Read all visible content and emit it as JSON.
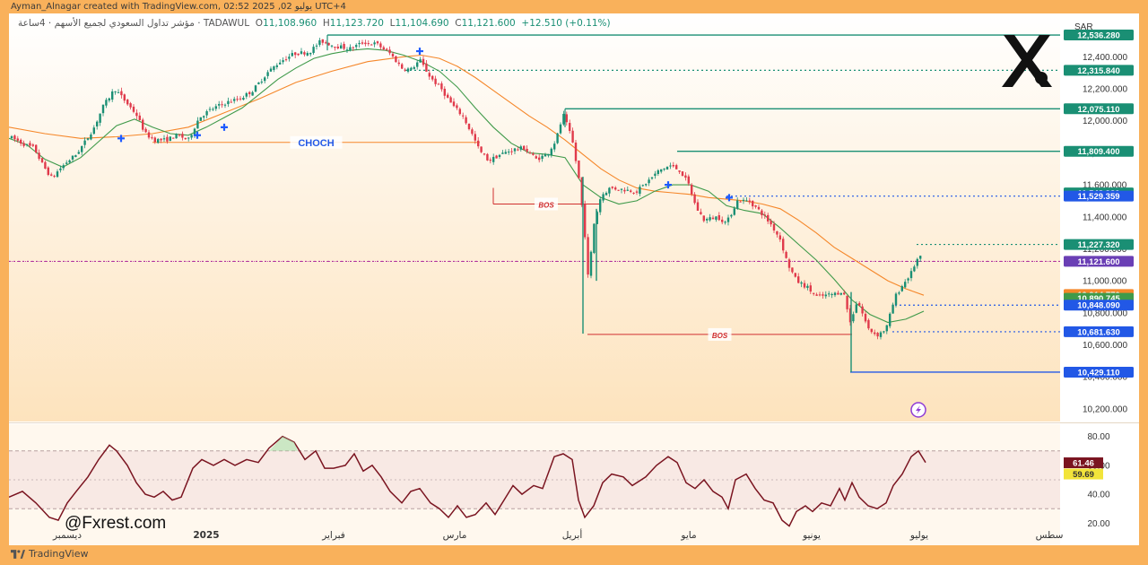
{
  "creator_line": "Ayman_Alnagar created with TradingView.com, 02:52 2025 ,02 يوليو UTC+4",
  "symbol": {
    "name": "مؤشر تداول السعودي لجميع الأسهم · 4ساعة · TADAWUL",
    "open_label": "O",
    "open": "11,108.960",
    "high_label": "H",
    "high": "11,123.720",
    "low_label": "L",
    "low": "11,104.690",
    "close_label": "C",
    "close": "11,121.600",
    "change": "+12.510 (+0.11%)"
  },
  "currency": "SAR",
  "watermark_text": "@Fxrest.com",
  "footer_brand": "TradingView",
  "colors": {
    "background_outer": "#f9b15b",
    "up": "#1a8f74",
    "down": "#e03a4b",
    "sma_fast": "#3f9a4a",
    "sma_slow": "#f5872a",
    "rsi": "#7a1420",
    "level_green": "#1a8f74",
    "level_blue": "#2258e6",
    "bos": "#d03030",
    "choch": "#2258e6"
  },
  "chart_data": {
    "type": "candlestick",
    "timeframe": "4h",
    "y_axis": {
      "ticks": [
        "12,400.000",
        "12,200.000",
        "12,000.000",
        "11,800.000",
        "11,600.000",
        "11,400.000",
        "11,200.000",
        "11,000.000",
        "10,800.000",
        "10,600.000",
        "10,400.000",
        "10,200.000"
      ],
      "range": [
        10160,
        12570
      ]
    },
    "x_axis": {
      "ticks": [
        "ديسمبر",
        "2025",
        "فبراير",
        "مارس",
        "أبريل",
        "مايو",
        "يونيو",
        "يوليو",
        "سطس"
      ]
    },
    "price_path": [
      [
        0,
        11900
      ],
      [
        8,
        11880
      ],
      [
        18,
        11850
      ],
      [
        28,
        11830
      ],
      [
        38,
        11720
      ],
      [
        48,
        11640
      ],
      [
        55,
        11690
      ],
      [
        64,
        11740
      ],
      [
        75,
        11790
      ],
      [
        85,
        11870
      ],
      [
        95,
        11960
      ],
      [
        105,
        12090
      ],
      [
        118,
        12200
      ],
      [
        130,
        12120
      ],
      [
        142,
        12040
      ],
      [
        152,
        11920
      ],
      [
        162,
        11880
      ],
      [
        175,
        11880
      ],
      [
        188,
        11910
      ],
      [
        200,
        11880
      ],
      [
        212,
        12020
      ],
      [
        225,
        12070
      ],
      [
        240,
        12110
      ],
      [
        258,
        12140
      ],
      [
        272,
        12190
      ],
      [
        288,
        12300
      ],
      [
        302,
        12370
      ],
      [
        318,
        12420
      ],
      [
        335,
        12430
      ],
      [
        348,
        12500
      ],
      [
        362,
        12470
      ],
      [
        380,
        12450
      ],
      [
        395,
        12490
      ],
      [
        410,
        12480
      ],
      [
        425,
        12420
      ],
      [
        438,
        12330
      ],
      [
        448,
        12320
      ],
      [
        458,
        12380
      ],
      [
        470,
        12270
      ],
      [
        482,
        12200
      ],
      [
        494,
        12100
      ],
      [
        506,
        12030
      ],
      [
        516,
        11920
      ],
      [
        525,
        11810
      ],
      [
        535,
        11750
      ],
      [
        548,
        11790
      ],
      [
        562,
        11820
      ],
      [
        574,
        11830
      ],
      [
        588,
        11760
      ],
      [
        600,
        11790
      ],
      [
        610,
        11880
      ],
      [
        618,
        12040
      ],
      [
        628,
        11880
      ],
      [
        636,
        11620
      ],
      [
        642,
        11300
      ],
      [
        646,
        11000
      ],
      [
        652,
        11350
      ],
      [
        660,
        11530
      ],
      [
        670,
        11580
      ],
      [
        685,
        11570
      ],
      [
        700,
        11560
      ],
      [
        712,
        11620
      ],
      [
        725,
        11690
      ],
      [
        737,
        11720
      ],
      [
        748,
        11690
      ],
      [
        758,
        11600
      ],
      [
        766,
        11460
      ],
      [
        775,
        11380
      ],
      [
        790,
        11400
      ],
      [
        800,
        11360
      ],
      [
        812,
        11500
      ],
      [
        825,
        11500
      ],
      [
        838,
        11430
      ],
      [
        850,
        11350
      ],
      [
        860,
        11260
      ],
      [
        868,
        11110
      ],
      [
        878,
        11000
      ],
      [
        890,
        10960
      ],
      [
        900,
        10900
      ],
      [
        912,
        10910
      ],
      [
        922,
        10920
      ],
      [
        930,
        10940
      ],
      [
        938,
        10740
      ],
      [
        946,
        10880
      ],
      [
        958,
        10700
      ],
      [
        968,
        10660
      ],
      [
        978,
        10700
      ],
      [
        988,
        10900
      ],
      [
        996,
        10970
      ],
      [
        1006,
        11050
      ],
      [
        1012,
        11130
      ],
      [
        1018,
        11150
      ]
    ],
    "sma_fast_path": [
      [
        0,
        11890
      ],
      [
        20,
        11850
      ],
      [
        40,
        11760
      ],
      [
        60,
        11710
      ],
      [
        80,
        11770
      ],
      [
        100,
        11870
      ],
      [
        120,
        11970
      ],
      [
        140,
        12010
      ],
      [
        160,
        11960
      ],
      [
        180,
        11920
      ],
      [
        200,
        11910
      ],
      [
        220,
        11960
      ],
      [
        240,
        12020
      ],
      [
        260,
        12080
      ],
      [
        280,
        12170
      ],
      [
        300,
        12260
      ],
      [
        320,
        12330
      ],
      [
        340,
        12390
      ],
      [
        360,
        12420
      ],
      [
        380,
        12440
      ],
      [
        400,
        12450
      ],
      [
        420,
        12440
      ],
      [
        440,
        12410
      ],
      [
        460,
        12370
      ],
      [
        480,
        12310
      ],
      [
        500,
        12210
      ],
      [
        520,
        12080
      ],
      [
        540,
        11960
      ],
      [
        560,
        11860
      ],
      [
        580,
        11800
      ],
      [
        600,
        11790
      ],
      [
        620,
        11770
      ],
      [
        640,
        11600
      ],
      [
        660,
        11520
      ],
      [
        680,
        11480
      ],
      [
        700,
        11500
      ],
      [
        720,
        11560
      ],
      [
        740,
        11600
      ],
      [
        760,
        11600
      ],
      [
        780,
        11560
      ],
      [
        800,
        11470
      ],
      [
        820,
        11440
      ],
      [
        840,
        11420
      ],
      [
        860,
        11330
      ],
      [
        880,
        11230
      ],
      [
        900,
        11130
      ],
      [
        920,
        11010
      ],
      [
        940,
        10880
      ],
      [
        960,
        10790
      ],
      [
        980,
        10740
      ],
      [
        1000,
        10760
      ],
      [
        1020,
        10810
      ]
    ],
    "sma_slow_path": [
      [
        0,
        11960
      ],
      [
        40,
        11920
      ],
      [
        80,
        11890
      ],
      [
        120,
        11900
      ],
      [
        160,
        11920
      ],
      [
        200,
        11960
      ],
      [
        240,
        12050
      ],
      [
        280,
        12140
      ],
      [
        320,
        12240
      ],
      [
        360,
        12310
      ],
      [
        400,
        12370
      ],
      [
        440,
        12400
      ],
      [
        460,
        12410
      ],
      [
        480,
        12390
      ],
      [
        500,
        12340
      ],
      [
        520,
        12270
      ],
      [
        540,
        12190
      ],
      [
        560,
        12110
      ],
      [
        580,
        12030
      ],
      [
        600,
        11960
      ],
      [
        620,
        11880
      ],
      [
        640,
        11790
      ],
      [
        660,
        11700
      ],
      [
        680,
        11630
      ],
      [
        700,
        11580
      ],
      [
        720,
        11560
      ],
      [
        740,
        11550
      ],
      [
        760,
        11540
      ],
      [
        780,
        11520
      ],
      [
        800,
        11510
      ],
      [
        820,
        11500
      ],
      [
        840,
        11480
      ],
      [
        860,
        11450
      ],
      [
        880,
        11380
      ],
      [
        900,
        11300
      ],
      [
        920,
        11210
      ],
      [
        940,
        11140
      ],
      [
        960,
        11070
      ],
      [
        980,
        11000
      ],
      [
        1000,
        10950
      ],
      [
        1020,
        10910
      ]
    ],
    "levels": [
      {
        "label": "12,536.280",
        "value": 12536.28,
        "style": "solid",
        "color": "#1a8f74",
        "from_x": 355
      },
      {
        "label": "12,315.840",
        "value": 12315.84,
        "style": "dotted",
        "color": "#1a8f74",
        "from_x": 442
      },
      {
        "label": "12,075.110",
        "value": 12075.11,
        "style": "solid",
        "color": "#1a8f74",
        "from_x": 620
      },
      {
        "label": "11,809.400",
        "value": 11809.4,
        "style": "solid",
        "color": "#1a8f74",
        "from_x": 745
      },
      {
        "label": "11,548.920",
        "value": 11548.92,
        "style": "none",
        "color": "#1a8f74",
        "from_x": 0
      },
      {
        "label": "11,529.359",
        "value": 11529.359,
        "style": "dotted",
        "color": "#2258e6",
        "from_x": 800
      },
      {
        "label": "11,227.320",
        "value": 11227.32,
        "style": "dotted",
        "color": "#1a8f74",
        "from_x": 1012
      },
      {
        "label": "11,121.600",
        "value": 11121.6,
        "style": "dotted",
        "color": "#b0329e",
        "from_x": 0
      },
      {
        "label": "10,914.770",
        "value": 10914.77,
        "style": "none",
        "color": "#f5872a",
        "from_x": 0
      },
      {
        "label": "10,890.745",
        "value": 10890.745,
        "style": "none",
        "color": "#3f9a4a",
        "from_x": 0
      },
      {
        "label": "10,848.090",
        "value": 10848.09,
        "style": "dotted",
        "color": "#2258e6",
        "from_x": 988
      },
      {
        "label": "10,681.630",
        "value": 10681.63,
        "style": "dotted",
        "color": "#2258e6",
        "from_x": 985
      },
      {
        "label": "10,429.110",
        "value": 10429.11,
        "style": "solid",
        "color": "#2258e6",
        "from_x": 938
      }
    ],
    "level_label_colors": {
      "12,536.280": "#1a8f74",
      "12,315.840": "#1a8f74",
      "12,075.110": "#1a8f74",
      "11,809.400": "#1a8f74",
      "11,548.920": "#1a8f74",
      "11,529.359": "#2258e6",
      "11,227.320": "#1a8f74",
      "11,121.600": "#6a3fb5",
      "10,914.770": "#f5872a",
      "10,890.745": "#3f9a4a",
      "10,848.090": "#2258e6",
      "10,681.630": "#2258e6",
      "10,429.110": "#2258e6"
    },
    "annotations": [
      {
        "text": "CHOCH",
        "value": 11865,
        "x1": 160,
        "x2": 525,
        "color": "#f5872a",
        "text_color": "#2258e6"
      },
      {
        "text": "BOS",
        "value": 11480,
        "x1": 540,
        "x2": 658,
        "color": "#d03030",
        "text_color": "#d03030"
      },
      {
        "text": "BOS",
        "value": 10665,
        "x1": 645,
        "x2": 940,
        "color": "#d03030",
        "text_color": "#d03030"
      }
    ],
    "markers": [
      [
        125,
        11890
      ],
      [
        210,
        11910
      ],
      [
        240,
        11960
      ],
      [
        458,
        12435
      ],
      [
        735,
        11600
      ],
      [
        803,
        11520
      ]
    ],
    "rsi": {
      "ticks": [
        "80.00",
        "60.00",
        "40.00",
        "20.00"
      ],
      "range": [
        14,
        86
      ],
      "bands": [
        70,
        30
      ],
      "current": "61.46",
      "signal": "59.69",
      "path": [
        [
          0,
          38
        ],
        [
          15,
          42
        ],
        [
          30,
          34
        ],
        [
          45,
          24
        ],
        [
          55,
          22
        ],
        [
          65,
          34
        ],
        [
          75,
          42
        ],
        [
          88,
          52
        ],
        [
          100,
          64
        ],
        [
          112,
          74
        ],
        [
          120,
          70
        ],
        [
          132,
          60
        ],
        [
          142,
          48
        ],
        [
          152,
          40
        ],
        [
          162,
          38
        ],
        [
          172,
          42
        ],
        [
          182,
          36
        ],
        [
          192,
          38
        ],
        [
          205,
          58
        ],
        [
          215,
          64
        ],
        [
          228,
          60
        ],
        [
          240,
          64
        ],
        [
          252,
          60
        ],
        [
          265,
          64
        ],
        [
          278,
          62
        ],
        [
          290,
          72
        ],
        [
          305,
          80
        ],
        [
          318,
          76
        ],
        [
          330,
          64
        ],
        [
          342,
          70
        ],
        [
          352,
          58
        ],
        [
          362,
          58
        ],
        [
          375,
          60
        ],
        [
          385,
          68
        ],
        [
          395,
          56
        ],
        [
          405,
          60
        ],
        [
          415,
          52
        ],
        [
          425,
          42
        ],
        [
          438,
          34
        ],
        [
          448,
          42
        ],
        [
          458,
          44
        ],
        [
          470,
          34
        ],
        [
          480,
          30
        ],
        [
          490,
          24
        ],
        [
          500,
          32
        ],
        [
          510,
          24
        ],
        [
          520,
          26
        ],
        [
          532,
          34
        ],
        [
          542,
          26
        ],
        [
          552,
          36
        ],
        [
          562,
          46
        ],
        [
          572,
          40
        ],
        [
          585,
          46
        ],
        [
          595,
          44
        ],
        [
          608,
          66
        ],
        [
          618,
          68
        ],
        [
          628,
          64
        ],
        [
          635,
          36
        ],
        [
          642,
          24
        ],
        [
          652,
          32
        ],
        [
          662,
          48
        ],
        [
          672,
          54
        ],
        [
          685,
          52
        ],
        [
          695,
          46
        ],
        [
          710,
          52
        ],
        [
          722,
          60
        ],
        [
          735,
          66
        ],
        [
          745,
          62
        ],
        [
          755,
          48
        ],
        [
          765,
          44
        ],
        [
          775,
          50
        ],
        [
          785,
          42
        ],
        [
          795,
          38
        ],
        [
          802,
          30
        ],
        [
          810,
          50
        ],
        [
          822,
          54
        ],
        [
          832,
          44
        ],
        [
          842,
          36
        ],
        [
          852,
          34
        ],
        [
          862,
          22
        ],
        [
          870,
          18
        ],
        [
          878,
          28
        ],
        [
          888,
          32
        ],
        [
          896,
          28
        ],
        [
          906,
          34
        ],
        [
          916,
          32
        ],
        [
          926,
          44
        ],
        [
          932,
          36
        ],
        [
          940,
          48
        ],
        [
          948,
          38
        ],
        [
          958,
          32
        ],
        [
          968,
          30
        ],
        [
          978,
          34
        ],
        [
          986,
          46
        ],
        [
          996,
          54
        ],
        [
          1006,
          66
        ],
        [
          1014,
          70
        ],
        [
          1022,
          62
        ]
      ]
    }
  }
}
